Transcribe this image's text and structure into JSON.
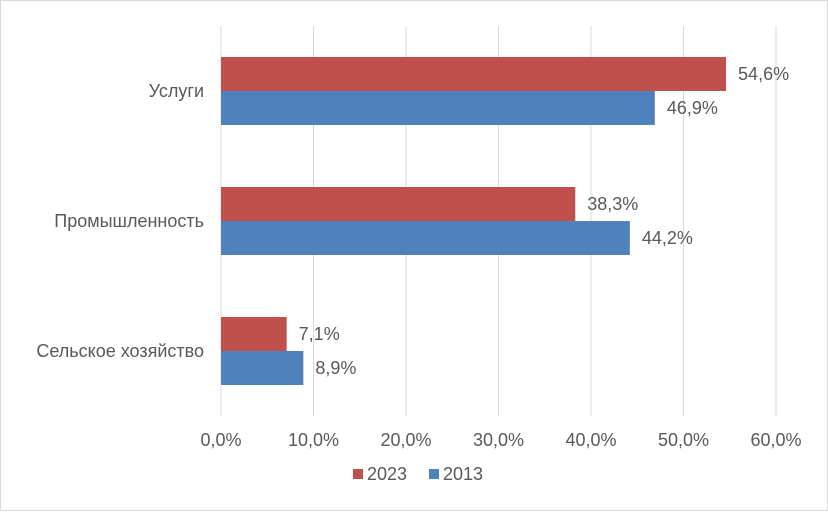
{
  "chart_data": {
    "type": "bar",
    "orientation": "horizontal",
    "categories": [
      "Услуги",
      "Промышленность",
      "Сельское хозяйство"
    ],
    "series": [
      {
        "name": "2023",
        "values": [
          54.6,
          38.3,
          7.1
        ],
        "labels": [
          "54,6%",
          "38,3%",
          "7,1%"
        ],
        "color": "#c0504d"
      },
      {
        "name": "2013",
        "values": [
          46.9,
          44.2,
          8.9
        ],
        "labels": [
          "46,9%",
          "44,2%",
          "8,9%"
        ],
        "color": "#4f81bd"
      }
    ],
    "xlim": [
      0,
      60
    ],
    "xticks": [
      "0,0%",
      "10,0%",
      "20,0%",
      "30,0%",
      "40,0%",
      "50,0%",
      "60,0%"
    ],
    "grid": true,
    "legend_position": "bottom",
    "gridline_color": "#d9d9d9"
  }
}
